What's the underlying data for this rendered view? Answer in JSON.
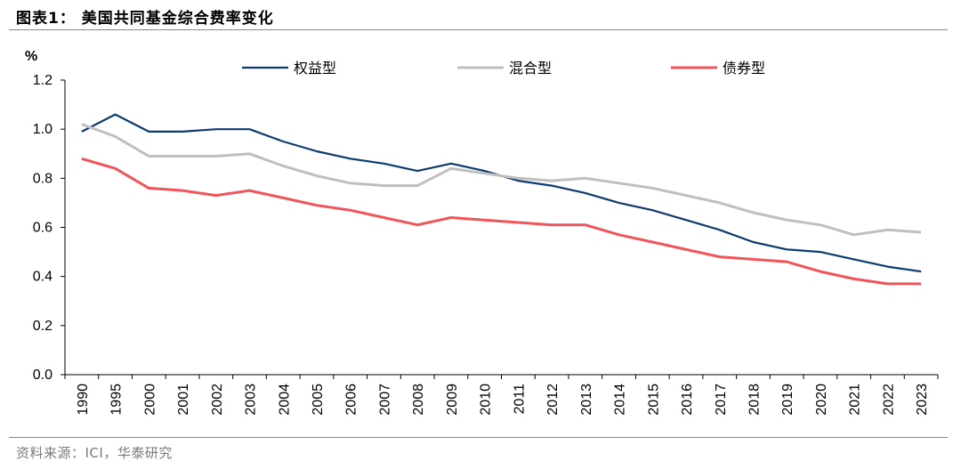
{
  "header": {
    "title": "图表1： 美国共同基金综合费率变化"
  },
  "footer": {
    "source": "资料来源：ICI，华泰研究"
  },
  "chart_data": {
    "type": "line",
    "title": "",
    "ylabel": "%",
    "xlabel": "",
    "ylim": [
      0,
      1.2
    ],
    "yticks": [
      "0.0",
      "0.2",
      "0.4",
      "0.6",
      "0.8",
      "1.0",
      "1.2"
    ],
    "grid": false,
    "legend_position": "top",
    "categories": [
      "1990",
      "1995",
      "2000",
      "2001",
      "2002",
      "2003",
      "2004",
      "2005",
      "2006",
      "2007",
      "2008",
      "2009",
      "2010",
      "2011",
      "2012",
      "2013",
      "2014",
      "2015",
      "2016",
      "2017",
      "2018",
      "2019",
      "2020",
      "2021",
      "2022",
      "2023"
    ],
    "series": [
      {
        "name": "权益型",
        "color": "#0e3a73",
        "values": [
          0.99,
          1.06,
          0.99,
          0.99,
          1.0,
          1.0,
          0.95,
          0.91,
          0.88,
          0.86,
          0.83,
          0.86,
          0.83,
          0.79,
          0.77,
          0.74,
          0.7,
          0.67,
          0.63,
          0.59,
          0.54,
          0.51,
          0.5,
          0.47,
          0.44,
          0.42
        ]
      },
      {
        "name": "混合型",
        "color": "#bfbfbf",
        "values": [
          1.02,
          0.97,
          0.89,
          0.89,
          0.89,
          0.9,
          0.85,
          0.81,
          0.78,
          0.77,
          0.77,
          0.84,
          0.82,
          0.8,
          0.79,
          0.8,
          0.78,
          0.76,
          0.73,
          0.7,
          0.66,
          0.63,
          0.61,
          0.57,
          0.59,
          0.58
        ]
      },
      {
        "name": "债券型",
        "color": "#f0555a",
        "values": [
          0.88,
          0.84,
          0.76,
          0.75,
          0.73,
          0.75,
          0.72,
          0.69,
          0.67,
          0.64,
          0.61,
          0.64,
          0.63,
          0.62,
          0.61,
          0.61,
          0.57,
          0.54,
          0.51,
          0.48,
          0.47,
          0.46,
          0.42,
          0.39,
          0.37,
          0.37
        ]
      }
    ]
  }
}
